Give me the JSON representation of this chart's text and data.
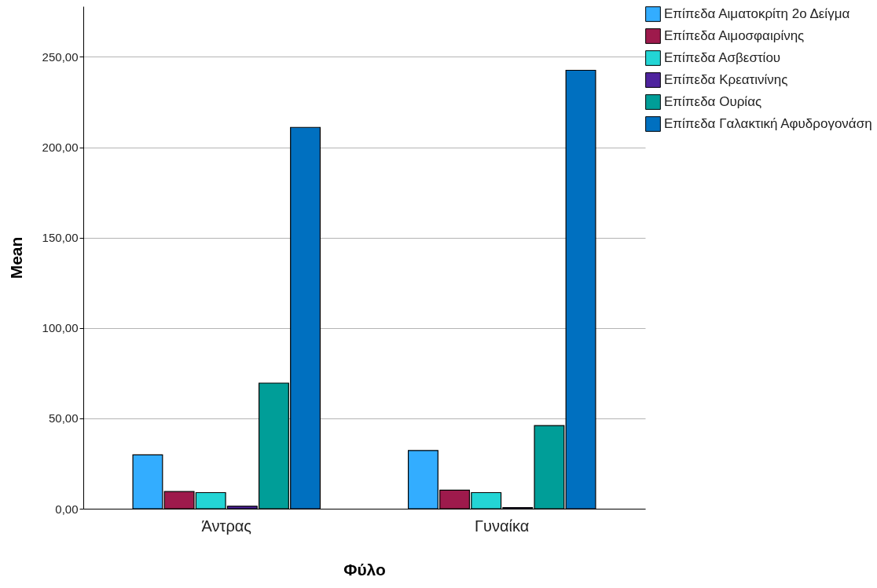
{
  "chart_data": {
    "type": "bar",
    "xlabel": "Φύλο",
    "ylabel": "Mean",
    "categories": [
      "Άντρας",
      "Γυναίκα"
    ],
    "series": [
      {
        "name": "Επίπεδα Αιματοκρίτη 2ο Δείγμα",
        "color": "#33adff",
        "values": [
          29.8,
          32.2
        ]
      },
      {
        "name": "Επίπεδα Αιμοσφαιρίνης",
        "color": "#9e1a4c",
        "values": [
          9.5,
          10.3
        ]
      },
      {
        "name": "Επίπεδα Ασβεστίου",
        "color": "#23d5d5",
        "values": [
          8.9,
          8.9
        ]
      },
      {
        "name": "Επίπεδα Κρεατινίνης",
        "color": "#4e239e",
        "values": [
          1.4,
          0.6
        ]
      },
      {
        "name": "Επίπεδα Ουρίας",
        "color": "#009e98",
        "values": [
          69.5,
          46.0
        ]
      },
      {
        "name": "Επίπεδα Γαλακτική Αφυδρογονάση",
        "color": "#0070c0",
        "values": [
          211,
          242.6
        ]
      }
    ],
    "ylim": [
      0,
      278
    ],
    "yticks": [
      {
        "value": 0,
        "label": "0,00"
      },
      {
        "value": 50,
        "label": "50,00"
      },
      {
        "value": 100,
        "label": "100,00"
      },
      {
        "value": 150,
        "label": "150,00"
      },
      {
        "value": 200,
        "label": "200,00"
      },
      {
        "value": 250,
        "label": "250,00"
      }
    ],
    "grid": "y",
    "legend": "top right"
  }
}
